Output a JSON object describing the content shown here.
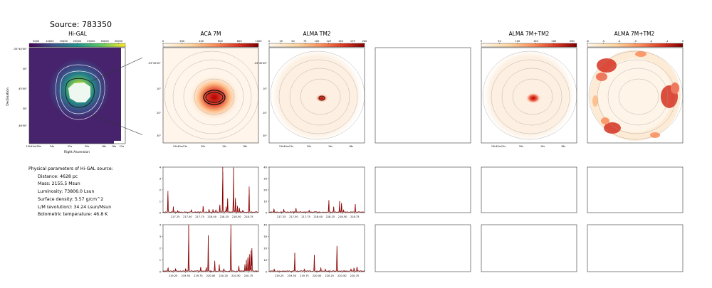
{
  "figure_title": "Source: 783350",
  "panel_titles": {
    "higal": "Hi-GAL",
    "aca7m": "ACA 7M",
    "tm2": "ALMA TM2",
    "combo_linear": "ALMA 7M+TM2",
    "combo_log": "ALMA 7M+TM2"
  },
  "higal_axes": {
    "ylabel": "Declination",
    "xlabel": "Right Ascension",
    "yticks": [
      "-53°44'00\"",
      "30\"",
      "45'00\"",
      "30\"",
      "46'00\""
    ],
    "xticks": [
      "15h49m26s",
      "24s",
      "22s",
      "20s",
      "18s",
      "16s",
      "12s"
    ]
  },
  "colorbars": {
    "higal": {
      "ticks": [
        "5000",
        "10000",
        "15000",
        "20000",
        "25000",
        "30000",
        "35000"
      ],
      "colormap": "viridis"
    },
    "aca7m": {
      "ticks": [
        "0",
        "200",
        "400",
        "600",
        "800",
        "1000"
      ],
      "colormap": "OrRd"
    },
    "tm2": {
      "ticks": [
        "0",
        "25",
        "50",
        "75",
        "100",
        "125",
        "150",
        "175",
        "200"
      ],
      "colormap": "OrRd"
    },
    "combo_linear": {
      "ticks": [
        "0",
        "50",
        "100",
        "150",
        "200",
        "250"
      ],
      "colormap": "OrRd"
    },
    "combo_log": {
      "ticks": [
        "-6",
        "-5",
        "-4",
        "-3",
        "-2",
        "-1",
        "0"
      ],
      "colormap": "OrRd"
    }
  },
  "small_axes": {
    "yticks": [
      "-53°45'00\"",
      "10\"",
      "20\"",
      "30\""
    ],
    "xticks": [
      "15h49m21s",
      "20s",
      "19s",
      "18s"
    ]
  },
  "info": {
    "header": "Physical parameters of Hi-GAL source:",
    "lines": [
      "Distance: 4628 pc",
      "Mass: 2155.5 Msun",
      "Luminosity: 73806.0 Lsun",
      "Surface density: 5.57 g/cm^2",
      "L/M (evolution): 34.24 Lsun/Msun",
      "Bolometric temperature: 46.8 K"
    ]
  },
  "chart_data": [
    {
      "type": "line",
      "panel": "ACA 7M spectrum, window 1",
      "xlim": [
        217.0,
        218.95
      ],
      "ylim": [
        0,
        4
      ],
      "xticks": [
        "217.25",
        "217.50",
        "217.75",
        "218.00",
        "218.25",
        "218.50",
        "218.75"
      ],
      "yticks": [
        "0",
        "1",
        "2",
        "3",
        "4"
      ],
      "color": "#8b0000",
      "baseline": 0.05,
      "peaks": [
        {
          "x": 217.1,
          "y": 1.9
        },
        {
          "x": 217.21,
          "y": 0.5
        },
        {
          "x": 217.3,
          "y": 0.15
        },
        {
          "x": 217.58,
          "y": 0.2
        },
        {
          "x": 217.82,
          "y": 0.55
        },
        {
          "x": 217.94,
          "y": 0.3
        },
        {
          "x": 218.02,
          "y": 0.25
        },
        {
          "x": 218.08,
          "y": 0.2
        },
        {
          "x": 218.16,
          "y": 0.7
        },
        {
          "x": 218.22,
          "y": 4.0
        },
        {
          "x": 218.29,
          "y": 0.5
        },
        {
          "x": 218.32,
          "y": 1.2
        },
        {
          "x": 218.44,
          "y": 3.95
        },
        {
          "x": 218.48,
          "y": 1.3
        },
        {
          "x": 218.52,
          "y": 0.6
        },
        {
          "x": 218.56,
          "y": 0.4
        },
        {
          "x": 218.63,
          "y": 0.2
        },
        {
          "x": 218.76,
          "y": 2.3
        }
      ]
    },
    {
      "type": "line",
      "panel": "ALMA TM2 spectrum, window 1",
      "xlim": [
        217.0,
        218.95
      ],
      "ylim": [
        0,
        40
      ],
      "xticks": [
        "217.25",
        "217.50",
        "217.75",
        "218.00",
        "218.25",
        "218.50",
        "218.75"
      ],
      "yticks": [
        "0",
        "10",
        "20",
        "30",
        "40"
      ],
      "color": "#8b0000",
      "baseline": 0.5,
      "peaks": [
        {
          "x": 217.1,
          "y": 3.0
        },
        {
          "x": 217.3,
          "y": 2.5
        },
        {
          "x": 217.55,
          "y": 4.0
        },
        {
          "x": 217.82,
          "y": 1.5
        },
        {
          "x": 218.22,
          "y": 11.0
        },
        {
          "x": 218.32,
          "y": 5.0
        },
        {
          "x": 218.44,
          "y": 10.0
        },
        {
          "x": 218.48,
          "y": 8.5
        },
        {
          "x": 218.52,
          "y": 2.0
        },
        {
          "x": 218.76,
          "y": 7.5
        }
      ]
    },
    {
      "type": "line",
      "panel": "ACA 7M spectrum, window 2",
      "xlim": [
        219.05,
        220.95
      ],
      "ylim": [
        0,
        4
      ],
      "xticks": [
        "219.25",
        "219.50",
        "219.75",
        "220.00",
        "220.25",
        "220.50",
        "220.75"
      ],
      "yticks": [
        "0",
        "1",
        "2",
        "3",
        "4"
      ],
      "color": "#8b0000",
      "baseline": 0.05,
      "peaks": [
        {
          "x": 219.15,
          "y": 0.3
        },
        {
          "x": 219.3,
          "y": 0.2
        },
        {
          "x": 219.5,
          "y": 0.25
        },
        {
          "x": 219.56,
          "y": 4.0
        },
        {
          "x": 219.8,
          "y": 0.4
        },
        {
          "x": 219.91,
          "y": 0.35
        },
        {
          "x": 219.95,
          "y": 3.1
        },
        {
          "x": 220.08,
          "y": 0.9
        },
        {
          "x": 220.17,
          "y": 0.6
        },
        {
          "x": 220.26,
          "y": 0.2
        },
        {
          "x": 220.4,
          "y": 4.0
        },
        {
          "x": 220.56,
          "y": 0.5
        },
        {
          "x": 220.68,
          "y": 0.6
        },
        {
          "x": 220.71,
          "y": 1.0
        },
        {
          "x": 220.74,
          "y": 1.2
        },
        {
          "x": 220.77,
          "y": 1.5
        },
        {
          "x": 220.8,
          "y": 1.8
        },
        {
          "x": 220.82,
          "y": 2.0
        }
      ]
    },
    {
      "type": "line",
      "panel": "ALMA TM2 spectrum, window 2",
      "xlim": [
        219.05,
        220.95
      ],
      "ylim": [
        0,
        40
      ],
      "xticks": [
        "219.25",
        "219.50",
        "219.75",
        "220.00",
        "220.25",
        "220.50",
        "220.75"
      ],
      "yticks": [
        "0",
        "10",
        "20",
        "30",
        "40"
      ],
      "color": "#8b0000",
      "baseline": 0.5,
      "peaks": [
        {
          "x": 219.15,
          "y": 2.0
        },
        {
          "x": 219.56,
          "y": 16.0
        },
        {
          "x": 219.75,
          "y": 2.0
        },
        {
          "x": 219.95,
          "y": 14.0
        },
        {
          "x": 220.08,
          "y": 3.0
        },
        {
          "x": 220.17,
          "y": 2.0
        },
        {
          "x": 220.4,
          "y": 22.0
        },
        {
          "x": 220.68,
          "y": 2.0
        },
        {
          "x": 220.74,
          "y": 3.0
        },
        {
          "x": 220.8,
          "y": 4.0
        }
      ]
    }
  ]
}
